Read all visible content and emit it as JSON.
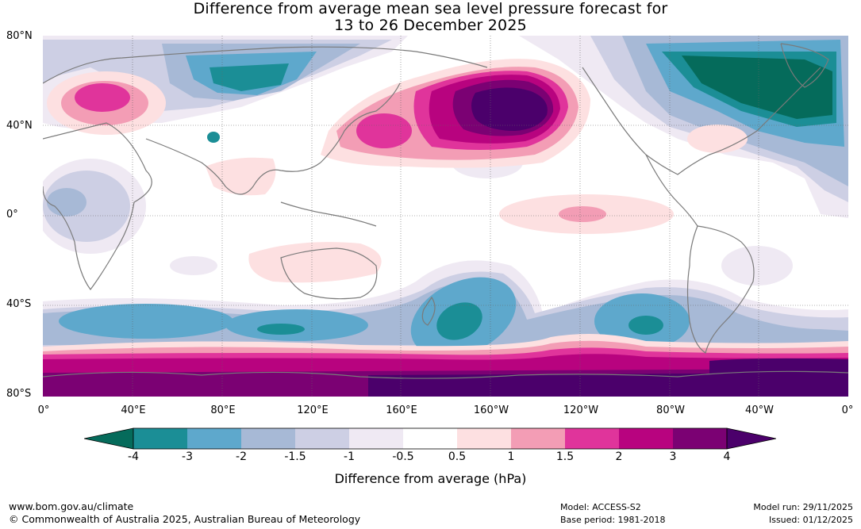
{
  "title": {
    "line1": "Difference from average mean sea level pressure forecast for",
    "line2": "13 to 26 December 2025"
  },
  "map": {
    "lat_labels": [
      "80°N",
      "40°N",
      "0°",
      "40°S",
      "80°S"
    ],
    "lon_labels": [
      "0°",
      "40°E",
      "80°E",
      "120°E",
      "160°E",
      "160°W",
      "120°W",
      "80°W",
      "40°W",
      "0°"
    ]
  },
  "colorbar": {
    "ticks": [
      "-4",
      "-3",
      "-2",
      "-1.5",
      "-1",
      "-0.5",
      "0.5",
      "1",
      "1.5",
      "2",
      "3",
      "4"
    ],
    "colors": [
      "#1b8e96",
      "#5ea8cc",
      "#a7b9d6",
      "#cdcfe4",
      "#efe9f3",
      "#ffffff",
      "#fde0e1",
      "#f39db5",
      "#e0349b",
      "#b8037f",
      "#7b0173"
    ],
    "low_extend_color": "#056b5b",
    "high_extend_color": "#4b006b",
    "label": "Difference from average (hPa)"
  },
  "footer": {
    "url": "www.bom.gov.au/climate",
    "copyright": "© Commonwealth of Australia 2025, Australian Bureau of Meteorology",
    "model": "Model: ACCESS-S2",
    "base_period": "Base period: 1981-2018",
    "model_run": "Model run: 29/11/2025",
    "issued": "Issued: 01/12/2025"
  }
}
